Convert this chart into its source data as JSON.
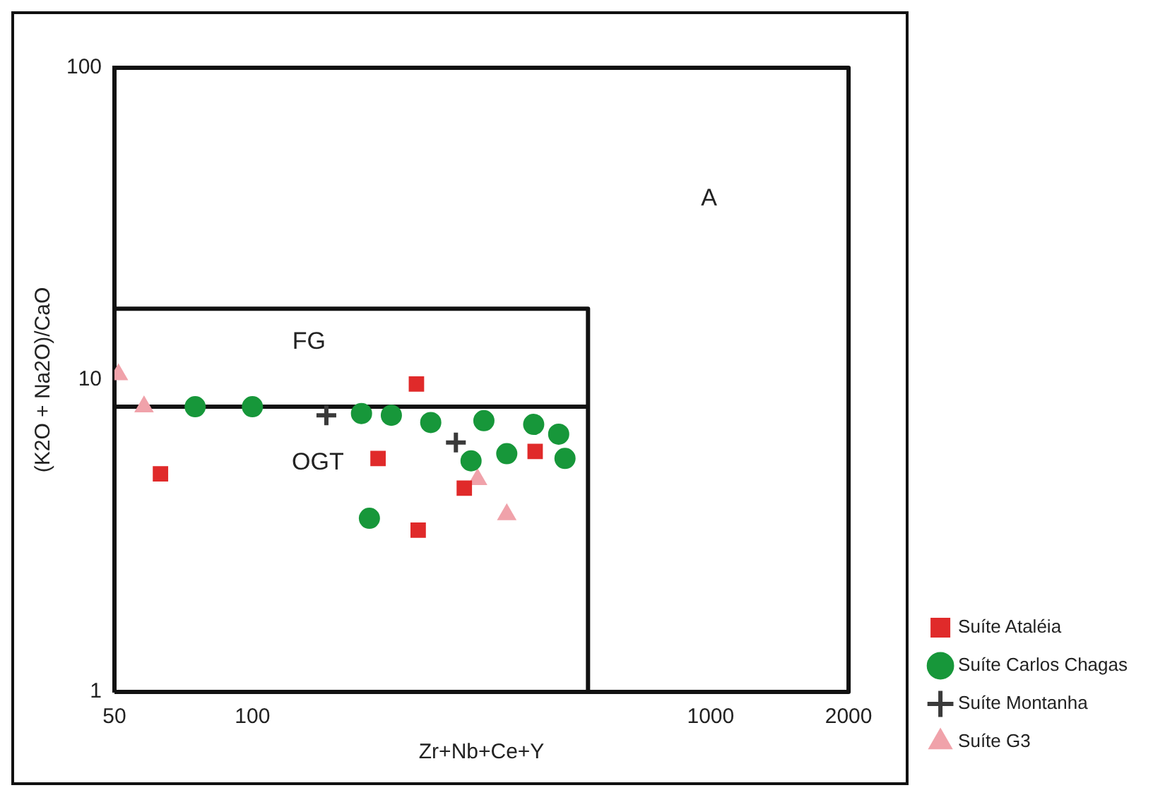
{
  "chart_data": {
    "type": "scatter",
    "xlabel": "Zr+Nb+Ce+Y",
    "ylabel": "(K2O + Na2O)/CaO",
    "log": "xy",
    "xlim": [
      50,
      2000
    ],
    "ylim": [
      1,
      100
    ],
    "xticks": [
      50,
      100,
      1000,
      2000
    ],
    "yticks": [
      1,
      10,
      100
    ],
    "grid": false,
    "legend": "bottom right",
    "annotations": [
      "A",
      "FG",
      "OGT"
    ],
    "series": [
      {
        "name": "Suíte Ataléia",
        "color": "#e02a2a",
        "marker": "square",
        "x": [
          228,
          188,
          63,
          290,
          414,
          230
        ],
        "values": [
          9.7,
          5.6,
          5.0,
          4.5,
          5.9,
          3.3
        ]
      },
      {
        "name": "Suíte Carlos Chagas",
        "color": "#17973a",
        "marker": "circle",
        "x": [
          75,
          100,
          173,
          201,
          245,
          320,
          411,
          466,
          481,
          359,
          300,
          180
        ],
        "values": [
          8.2,
          8.2,
          7.8,
          7.7,
          7.3,
          7.4,
          7.2,
          6.7,
          5.6,
          5.8,
          5.5,
          3.6
        ]
      },
      {
        "name": "Suíte Montanha",
        "color": "#3a3a3a",
        "marker": "cross",
        "x": [
          145,
          278
        ],
        "values": [
          7.7,
          6.3
        ]
      },
      {
        "name": "Suíte G3",
        "color": "#f0a2aa",
        "marker": "triangle",
        "x": [
          51,
          58,
          310,
          359
        ],
        "values": [
          10.4,
          8.2,
          4.8,
          3.7
        ]
      },
      {
        "type": "line",
        "color": "#111111",
        "marker": "none",
        "x": [
          50,
          540,
          540
        ],
        "values": [
          16.9,
          16.9,
          1
        ]
      },
      {
        "type": "line",
        "color": "#111111",
        "marker": "none",
        "x": [
          50,
          540
        ],
        "values": [
          8.2,
          8.2
        ]
      },
      {
        "type": "line",
        "color": "#111111",
        "marker": "none",
        "x": [
          50,
          2000,
          2000
        ],
        "values": [
          100,
          100,
          1
        ]
      },
      {
        "type": "line",
        "color": "#111111",
        "marker": "none",
        "x": [
          50,
          2000
        ],
        "values": [
          1,
          1
        ]
      }
    ]
  }
}
